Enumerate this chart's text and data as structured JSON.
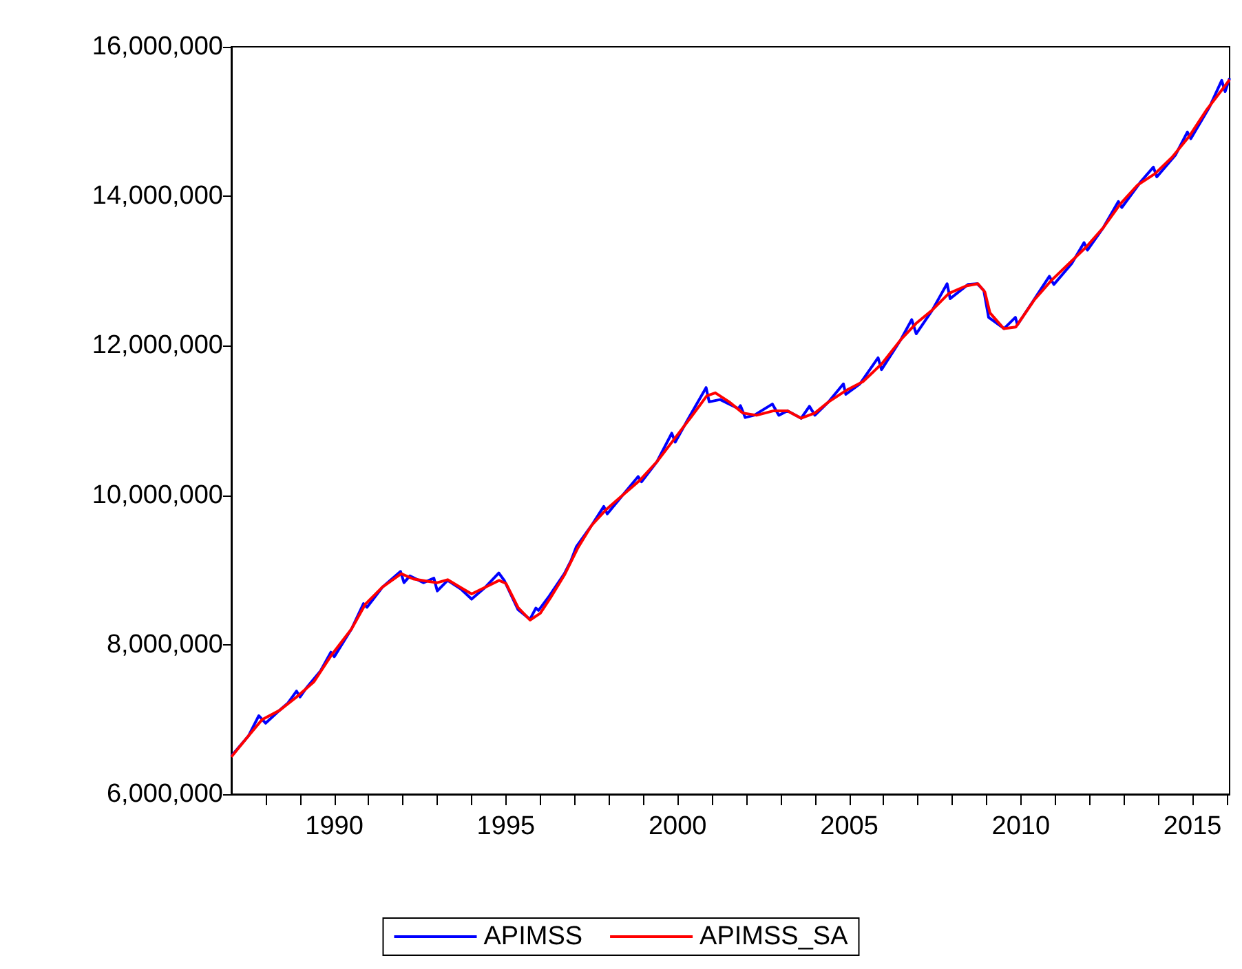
{
  "chart_data": {
    "type": "line",
    "xlim": [
      1987,
      2016.08
    ],
    "xticks": [
      {
        "value": 1988,
        "label": null
      },
      {
        "value": 1989,
        "label": null
      },
      1990,
      {
        "value": 1991,
        "label": null
      },
      {
        "value": 1992,
        "label": null
      },
      {
        "value": 1993,
        "label": null
      },
      {
        "value": 1994,
        "label": null
      },
      1995,
      {
        "value": 1996,
        "label": null
      },
      {
        "value": 1997,
        "label": null
      },
      {
        "value": 1998,
        "label": null
      },
      {
        "value": 1999,
        "label": null
      },
      2000,
      {
        "value": 2001,
        "label": null
      },
      {
        "value": 2002,
        "label": null
      },
      {
        "value": 2003,
        "label": null
      },
      {
        "value": 2004,
        "label": null
      },
      2005,
      {
        "value": 2006,
        "label": null
      },
      {
        "value": 2007,
        "label": null
      },
      {
        "value": 2008,
        "label": null
      },
      {
        "value": 2009,
        "label": null
      },
      2010,
      {
        "value": 2011,
        "label": null
      },
      {
        "value": 2012,
        "label": null
      },
      {
        "value": 2013,
        "label": null
      },
      {
        "value": 2014,
        "label": null
      },
      2015,
      {
        "value": 2016,
        "label": null
      }
    ],
    "ylim": [
      6000000,
      16000000
    ],
    "yticks": [
      {
        "value": 6000000,
        "label": "6,000,000"
      },
      {
        "value": 8000000,
        "label": "8,000,000"
      },
      {
        "value": 10000000,
        "label": "10,000,000"
      },
      {
        "value": 12000000,
        "label": "12,000,000"
      },
      {
        "value": 14000000,
        "label": "14,000,000"
      },
      {
        "value": 16000000,
        "label": "16,000,000"
      }
    ],
    "grid": false,
    "legend": "bottom",
    "marker": "none",
    "line_style": "solid",
    "series": [
      {
        "name": "APIMSS",
        "color": "#0000ff",
        "x": [
          1987.0,
          1987.5,
          1987.8,
          1988.0,
          1988.4,
          1988.65,
          1988.9,
          1989.0,
          1989.2,
          1989.6,
          1989.9,
          1990.0,
          1990.5,
          1990.85,
          1990.95,
          1991.4,
          1991.93,
          1992.03,
          1992.2,
          1992.6,
          1992.9,
          1993.0,
          1993.3,
          1993.7,
          1994.0,
          1994.4,
          1994.79,
          1994.95,
          1995.35,
          1995.7,
          1995.87,
          1995.95,
          1996.26,
          1996.7,
          1996.9,
          1997.05,
          1997.5,
          1997.85,
          1997.95,
          1998.4,
          1998.85,
          1998.95,
          1999.4,
          1999.83,
          1999.93,
          2000.33,
          2000.83,
          2000.92,
          2001.24,
          2001.77,
          2001.83,
          2001.97,
          2002.23,
          2002.76,
          2002.95,
          2003.2,
          2003.6,
          2003.84,
          2004.0,
          2004.4,
          2004.83,
          2004.9,
          2005.31,
          2005.84,
          2005.94,
          2006.5,
          2006.82,
          2006.95,
          2007.41,
          2007.85,
          2007.94,
          2008.46,
          2008.73,
          2008.92,
          2009.06,
          2009.51,
          2009.84,
          2009.9,
          2010.43,
          2010.83,
          2010.96,
          2011.48,
          2011.84,
          2011.94,
          2012.4,
          2012.84,
          2012.94,
          2013.5,
          2013.86,
          2013.96,
          2014.5,
          2014.85,
          2014.95,
          2015.5,
          2015.85,
          2015.95,
          2016.08
        ],
        "values": [
          6510000,
          6780000,
          7050000,
          6950000,
          7120000,
          7220000,
          7380000,
          7300000,
          7430000,
          7650000,
          7900000,
          7840000,
          8210000,
          8550000,
          8500000,
          8770000,
          8980000,
          8830000,
          8920000,
          8830000,
          8890000,
          8720000,
          8860000,
          8740000,
          8610000,
          8770000,
          8960000,
          8860000,
          8470000,
          8340000,
          8490000,
          8460000,
          8650000,
          8950000,
          9130000,
          9310000,
          9600000,
          9850000,
          9750000,
          10000000,
          10250000,
          10180000,
          10450000,
          10830000,
          10710000,
          11040000,
          11440000,
          11250000,
          11280000,
          11160000,
          11200000,
          11040000,
          11070000,
          11220000,
          11070000,
          11130000,
          11030000,
          11190000,
          11070000,
          11250000,
          11490000,
          11350000,
          11490000,
          11840000,
          11680000,
          12080000,
          12350000,
          12160000,
          12470000,
          12830000,
          12630000,
          12820000,
          12830000,
          12740000,
          12380000,
          12230000,
          12380000,
          12280000,
          12650000,
          12930000,
          12820000,
          13100000,
          13380000,
          13280000,
          13580000,
          13930000,
          13850000,
          14200000,
          14390000,
          14260000,
          14550000,
          14860000,
          14770000,
          15200000,
          15550000,
          15400000,
          15580000
        ]
      },
      {
        "name": "APIMSS_SA",
        "color": "#ff0000",
        "x": [
          1987.0,
          1987.5,
          1987.9,
          1988.4,
          1988.9,
          1989.4,
          1989.9,
          1990.5,
          1990.9,
          1991.4,
          1991.95,
          1992.3,
          1992.7,
          1993.0,
          1993.3,
          1993.7,
          1994.0,
          1994.4,
          1994.8,
          1995.0,
          1995.35,
          1995.7,
          1996.0,
          1996.3,
          1996.7,
          1997.1,
          1997.5,
          1997.9,
          1998.4,
          1998.9,
          1999.4,
          1999.9,
          2000.4,
          2000.85,
          2001.1,
          2001.5,
          2001.9,
          2002.3,
          2002.8,
          2003.2,
          2003.6,
          2004.0,
          2004.4,
          2004.9,
          2005.4,
          2005.95,
          2006.5,
          2006.95,
          2007.4,
          2007.9,
          2008.4,
          2008.75,
          2008.95,
          2009.1,
          2009.5,
          2009.85,
          2010.4,
          2010.9,
          2011.4,
          2011.9,
          2012.4,
          2012.9,
          2013.4,
          2013.9,
          2014.4,
          2014.9,
          2015.4,
          2015.9,
          2016.08
        ],
        "values": [
          6500000,
          6780000,
          7000000,
          7120000,
          7300000,
          7500000,
          7850000,
          8210000,
          8540000,
          8770000,
          8950000,
          8880000,
          8850000,
          8830000,
          8870000,
          8760000,
          8680000,
          8770000,
          8860000,
          8820000,
          8500000,
          8330000,
          8420000,
          8630000,
          8930000,
          9300000,
          9600000,
          9800000,
          10000000,
          10200000,
          10450000,
          10750000,
          11050000,
          11330000,
          11370000,
          11250000,
          11100000,
          11070000,
          11130000,
          11130000,
          11030000,
          11100000,
          11250000,
          11400000,
          11520000,
          11760000,
          12080000,
          12300000,
          12470000,
          12700000,
          12800000,
          12830000,
          12720000,
          12440000,
          12230000,
          12250000,
          12620000,
          12880000,
          13100000,
          13320000,
          13580000,
          13900000,
          14150000,
          14300000,
          14520000,
          14800000,
          15150000,
          15450000,
          15560000
        ]
      }
    ]
  }
}
